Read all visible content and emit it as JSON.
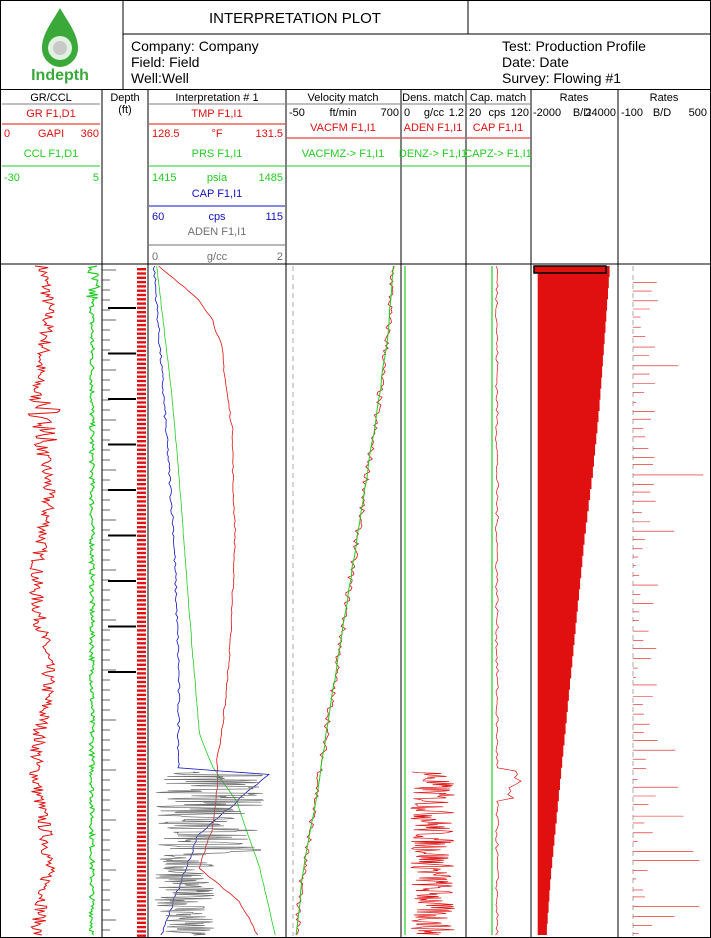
{
  "header": {
    "title": "INTERPRETATION PLOT",
    "logo_text": "Indepth",
    "company": "Company: Company",
    "field": "Field: Field",
    "well": "Well:Well",
    "test": "Test: Production Profile",
    "date": "Date: Date",
    "survey": "Survey: Flowing #1"
  },
  "colors": {
    "red": "#e01010",
    "green": "#22cc22",
    "blue": "#1010c0",
    "gray": "#707070",
    "logo_green": "#3aa93a"
  },
  "tracks": {
    "grccl": {
      "title": "GR/CCL",
      "gr_label": "GR  F1,D1",
      "gr_min": "0",
      "gr_unit": "GAPI",
      "gr_max": "360",
      "ccl_label": "CCL  F1,D1",
      "ccl_min": "-30",
      "ccl_max": "5"
    },
    "depth": {
      "title": "Depth",
      "unit": "(ft)"
    },
    "interp": {
      "title": "Interpretation # 1",
      "tmp_label": "TMP  F1,I1",
      "tmp_min": "128.5",
      "tmp_unit": "°F",
      "tmp_max": "131.5",
      "prs_label": "PRS  F1,I1",
      "prs_min": "1415",
      "prs_unit": "psia",
      "prs_max": "1485",
      "cap_label": "CAP  F1,I1",
      "cap_min": "60",
      "cap_unit": "cps",
      "cap_max": "115",
      "aden_label": "ADEN  F1,I1",
      "aden_min": "0",
      "aden_unit": "g/cc",
      "aden_max": "2"
    },
    "velocity": {
      "title": "Velocity match",
      "min": "-50",
      "unit": "ft/min",
      "max": "700",
      "vacfm_label": "VACFM  F1,I1",
      "vacfmz_label": "VACFMZ-> F1,I1"
    },
    "density": {
      "title": "Dens. match",
      "min": "0",
      "unit": "g/cc",
      "max": "1.2",
      "aden_label": "ADEN  F1,I1",
      "denz_label": "DENZ-> F1,I1"
    },
    "capacitance": {
      "title": "Cap. match",
      "min": "20",
      "unit": "cps",
      "max": "120",
      "cap_label": "CAP  F1,I1",
      "capz_label": "CAPZ-> F1,I1"
    },
    "rates1": {
      "title": "Rates",
      "min": "-2000",
      "unit": "B/D",
      "max": "24000"
    },
    "rates2": {
      "title": "Rates",
      "min": "-100",
      "unit": "B/D",
      "max": "500"
    }
  },
  "chart_data": {
    "type": "line",
    "series": [
      {
        "name": "TMP F1,I1",
        "unit": "°F",
        "range": [
          128.5,
          131.5
        ],
        "depth_index": [
          0,
          0.05,
          0.08,
          0.12,
          0.18,
          0.25,
          0.32,
          0.4,
          0.48,
          0.56,
          0.64,
          0.7,
          0.74,
          0.78,
          0.84,
          0.9,
          0.95,
          1.0
        ],
        "values": [
          128.7,
          129.6,
          129.9,
          130.1,
          130.2,
          130.35,
          130.35,
          130.4,
          130.35,
          130.3,
          130.2,
          130.1,
          130.0,
          130.0,
          129.9,
          129.6,
          130.5,
          130.9
        ]
      },
      {
        "name": "PRS F1,I1",
        "unit": "psia",
        "range": [
          1415,
          1485
        ],
        "depth_index": [
          0,
          0.1,
          0.2,
          0.3,
          0.45,
          0.6,
          0.7,
          0.75,
          0.8,
          0.9,
          1.0
        ],
        "values": [
          1419,
          1423,
          1427,
          1430,
          1434,
          1438,
          1441,
          1448,
          1460,
          1472,
          1480
        ]
      },
      {
        "name": "CAP F1,I1",
        "unit": "cps",
        "range": [
          60,
          115
        ],
        "depth_index": [
          0,
          0.05,
          0.1,
          0.2,
          0.3,
          0.4,
          0.5,
          0.6,
          0.7,
          0.75,
          0.76,
          0.85,
          0.95,
          1.0
        ],
        "values": [
          62,
          63,
          64,
          66,
          68,
          70,
          71,
          72,
          72,
          72,
          108,
          80,
          70,
          65
        ]
      },
      {
        "name": "ADEN F1,I1",
        "unit": "g/cc",
        "range": [
          0,
          2
        ],
        "depth_index": [
          0,
          0.75,
          0.76,
          0.85,
          0.95,
          1.0
        ],
        "values": [
          0.05,
          0.05,
          0.9,
          0.7,
          0.75,
          0.6
        ]
      },
      {
        "name": "VACFM F1,I1",
        "unit": "ft/min",
        "range": [
          -50,
          700
        ],
        "depth_index": [
          0,
          0.1,
          0.2,
          0.3,
          0.4,
          0.5,
          0.6,
          0.7,
          0.8,
          0.9,
          1.0
        ],
        "values": [
          655,
          620,
          560,
          490,
          420,
          350,
          280,
          210,
          140,
          60,
          10
        ]
      },
      {
        "name": "Rates (total)",
        "unit": "B/D",
        "range": [
          -2000,
          24000
        ],
        "depth_index": [
          0,
          0.1,
          0.2,
          0.3,
          0.4,
          0.5,
          0.6,
          0.7,
          0.8,
          0.9,
          1.0
        ],
        "values": [
          21500,
          20000,
          18500,
          16500,
          14000,
          12000,
          10000,
          8000,
          6000,
          4000,
          2500
        ]
      }
    ]
  }
}
